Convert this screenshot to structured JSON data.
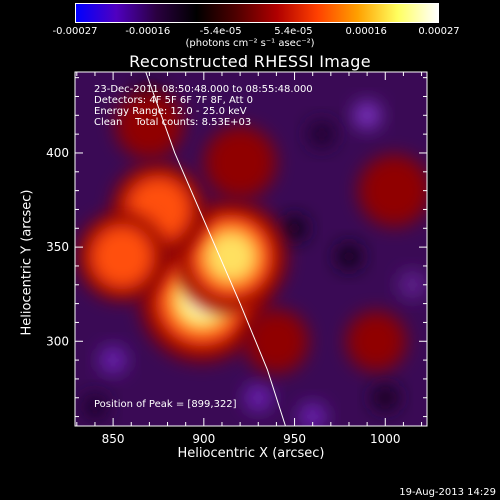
{
  "colorbar": {
    "tick_labels": [
      "-0.00027",
      "-0.00016",
      "-5.4e-05",
      "5.4e-05",
      "0.00016",
      "0.00027"
    ],
    "units_label": "(photons cm⁻² s⁻¹ asec⁻²)",
    "range": [
      -0.00027,
      0.00027
    ],
    "colormap": [
      "#0000ff",
      "#5000c0",
      "#2a0040",
      "#000000",
      "#500000",
      "#b00000",
      "#ff4000",
      "#ffa000",
      "#ffff60",
      "#ffffff"
    ]
  },
  "info": {
    "time_range": "23-Dec-2011 08:50:48.000 to 08:55:48.000",
    "detectors": "Detectors: 4F 5F 6F 7F 8F, Att 0",
    "energy_range": "Energy Range: 12.0 - 25.0 keV",
    "clean_counts": "Clean    Total counts: 8.53E+03",
    "peak_position": "Position of Peak = [899,322]"
  },
  "footer": {
    "date": "19-Aug-2013 14:29"
  },
  "chart_data": {
    "type": "heatmap",
    "title": "Reconstructed RHESSI Image",
    "xlabel": "Heliocentric X (arcsec)",
    "ylabel": "Heliocentric Y (arcsec)",
    "xlim": [
      829,
      1023
    ],
    "ylim": [
      255,
      443
    ],
    "x_ticks": [
      850,
      900,
      950,
      1000
    ],
    "y_ticks": [
      300,
      350,
      400
    ],
    "peak": {
      "x": 899,
      "y": 322
    },
    "sources": [
      {
        "x": 899,
        "y": 322,
        "intensity": 1.0
      },
      {
        "x": 915,
        "y": 345,
        "intensity": 0.85
      },
      {
        "x": 875,
        "y": 370,
        "intensity": 0.6
      },
      {
        "x": 855,
        "y": 345,
        "intensity": 0.55
      },
      {
        "x": 920,
        "y": 395,
        "intensity": 0.35
      },
      {
        "x": 940,
        "y": 300,
        "intensity": 0.25
      },
      {
        "x": 1005,
        "y": 380,
        "intensity": 0.35
      },
      {
        "x": 995,
        "y": 300,
        "intensity": 0.2
      },
      {
        "x": 870,
        "y": 415,
        "intensity": 0.3
      }
    ],
    "limb_curve": [
      [
        868,
        443
      ],
      [
        884,
        400
      ],
      [
        902,
        360
      ],
      [
        920,
        320
      ],
      [
        935,
        285
      ],
      [
        945,
        255
      ]
    ]
  }
}
